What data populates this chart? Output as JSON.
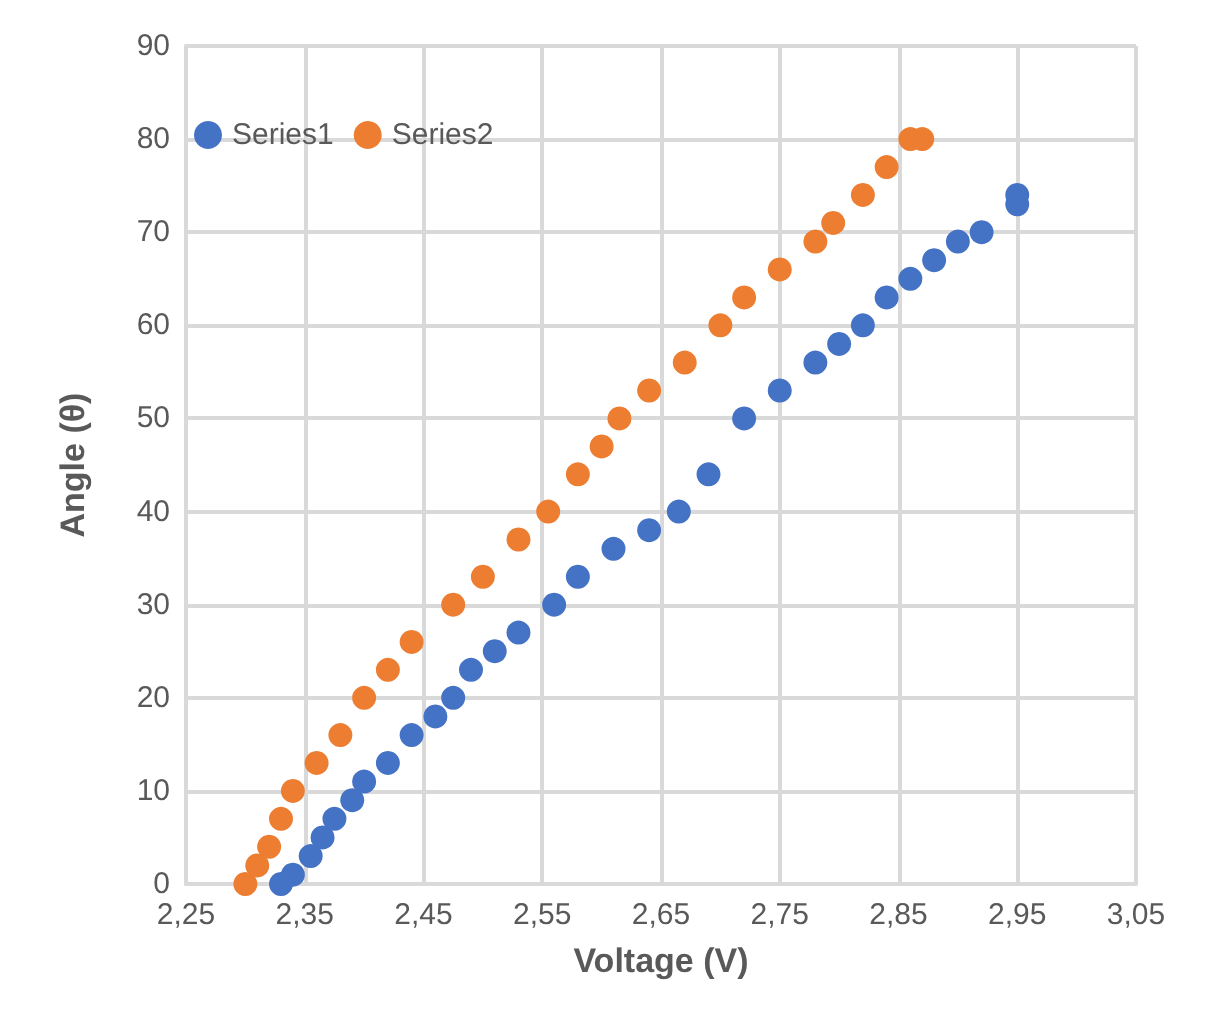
{
  "chart_data": {
    "type": "scatter",
    "xlabel": "Voltage (V)",
    "ylabel": "Angle (θ)",
    "xlim": [
      2.25,
      3.05
    ],
    "xticks": [
      {
        "value": 2.25,
        "label": "2,25"
      },
      {
        "value": 2.35,
        "label": "2,35"
      },
      {
        "value": 2.45,
        "label": "2,45"
      },
      {
        "value": 2.55,
        "label": "2,55"
      },
      {
        "value": 2.65,
        "label": "2,65"
      },
      {
        "value": 2.75,
        "label": "2,75"
      },
      {
        "value": 2.85,
        "label": "2,85"
      },
      {
        "value": 2.95,
        "label": "2,95"
      },
      {
        "value": 3.05,
        "label": "3,05"
      }
    ],
    "ylim": [
      0,
      90
    ],
    "yticks": [
      0,
      10,
      20,
      30,
      40,
      50,
      60,
      70,
      80,
      90
    ],
    "grid": true,
    "legend": "top left",
    "marker": "circle",
    "series": [
      {
        "name": "Series1",
        "color": "#4472c4",
        "x": [
          2.33,
          2.34,
          2.355,
          2.365,
          2.375,
          2.39,
          2.4,
          2.42,
          2.44,
          2.46,
          2.475,
          2.49,
          2.51,
          2.53,
          2.56,
          2.58,
          2.61,
          2.64,
          2.665,
          2.69,
          2.72,
          2.75,
          2.78,
          2.8,
          2.82,
          2.84,
          2.86,
          2.88,
          2.9,
          2.92,
          2.95,
          2.95
        ],
        "values": [
          0,
          1,
          3,
          5,
          7,
          9,
          11,
          13,
          16,
          18,
          20,
          23,
          25,
          27,
          30,
          33,
          36,
          38,
          40,
          44,
          50,
          53,
          56,
          58,
          60,
          63,
          65,
          67,
          69,
          70,
          73,
          74
        ]
      },
      {
        "name": "Series2",
        "color": "#ed7d31",
        "x": [
          2.3,
          2.31,
          2.32,
          2.33,
          2.34,
          2.36,
          2.38,
          2.4,
          2.42,
          2.44,
          2.475,
          2.5,
          2.53,
          2.555,
          2.58,
          2.6,
          2.615,
          2.64,
          2.67,
          2.7,
          2.72,
          2.75,
          2.78,
          2.795,
          2.82,
          2.84,
          2.86,
          2.87
        ],
        "values": [
          0,
          2,
          4,
          7,
          10,
          13,
          16,
          20,
          23,
          26,
          30,
          33,
          37,
          40,
          44,
          47,
          50,
          53,
          56,
          60,
          63,
          66,
          69,
          71,
          74,
          77,
          80,
          80
        ]
      }
    ]
  }
}
